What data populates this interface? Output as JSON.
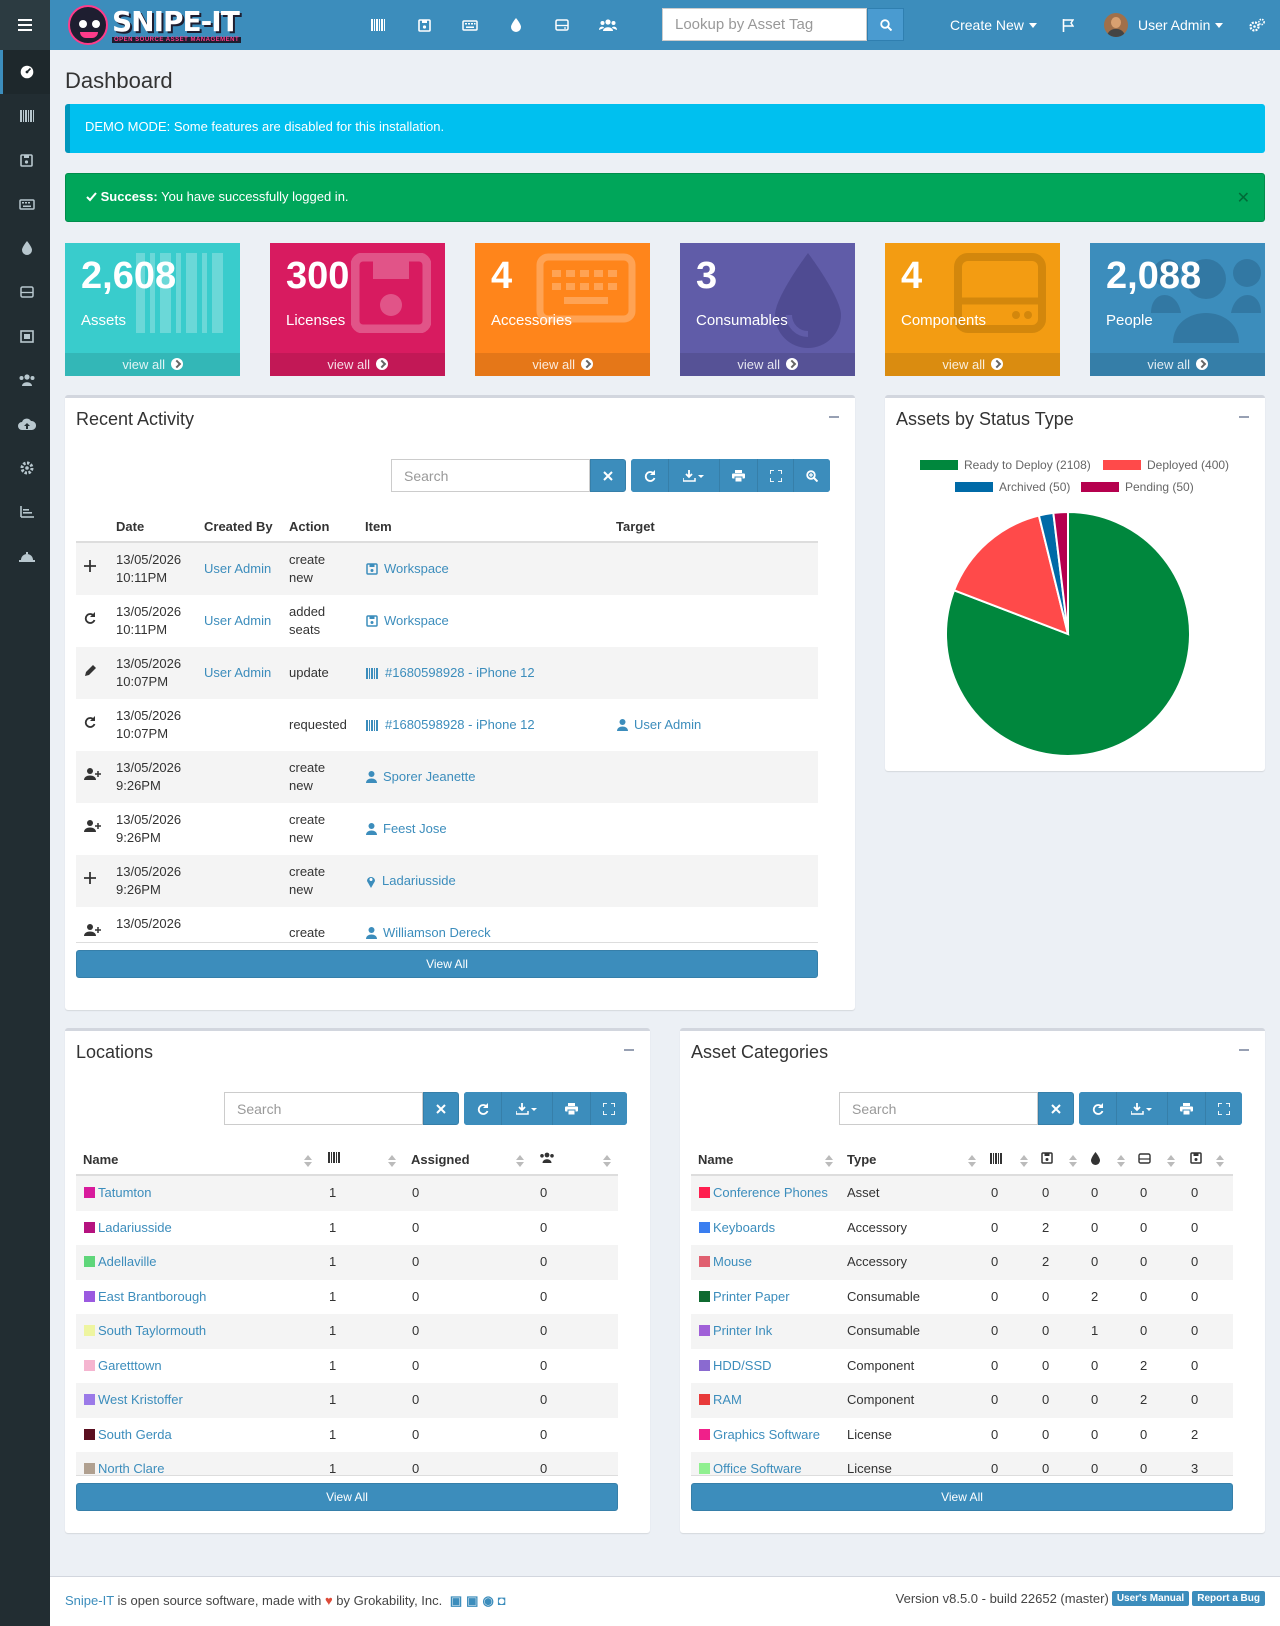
{
  "header": {
    "logo_text": "SNIPE-IT",
    "logo_tagline": "OPEN SOURCE ASSET MANAGEMENT",
    "search_placeholder": "Lookup by Asset Tag",
    "create_new_label": "Create New",
    "user_label": "User Admin",
    "icons": [
      "barcode-icon",
      "license-icon",
      "keyboard-icon",
      "droplet-icon",
      "hdd-icon",
      "users-icon"
    ]
  },
  "page": {
    "title": "Dashboard"
  },
  "alerts": {
    "demo": "DEMO MODE: Some features are disabled for this installation.",
    "success_strong": "Success:",
    "success_text": "You have successfully logged in."
  },
  "stats": [
    {
      "num": "2,608",
      "label": "Assets",
      "foot": "view all",
      "color": "#39cccc"
    },
    {
      "num": "300",
      "label": "Licenses",
      "foot": "view all",
      "color": "#d81b60"
    },
    {
      "num": "4",
      "label": "Accessories",
      "foot": "view all",
      "color": "#ff851b"
    },
    {
      "num": "3",
      "label": "Consumables",
      "foot": "view all",
      "color": "#605ca8"
    },
    {
      "num": "4",
      "label": "Components",
      "foot": "view all",
      "color": "#f39c12"
    },
    {
      "num": "2,088",
      "label": "People",
      "foot": "view all",
      "color": "#3c8dbc"
    }
  ],
  "recent": {
    "title": "Recent Activity",
    "search_placeholder": "Search",
    "columns": [
      "Date",
      "Created By",
      "Action",
      "Item",
      "Target"
    ],
    "rows": [
      {
        "d1": "13/05/2026",
        "d2": "10:11PM",
        "by": "User Admin",
        "a1": "create",
        "a2": "new",
        "item": "Workspace",
        "target": ""
      },
      {
        "d1": "13/05/2026",
        "d2": "10:11PM",
        "by": "User Admin",
        "a1": "added",
        "a2": "seats",
        "item": "Workspace",
        "target": ""
      },
      {
        "d1": "13/05/2026",
        "d2": "10:07PM",
        "by": "User Admin",
        "a1": "update",
        "a2": "",
        "item": "#1680598928 - iPhone 12",
        "target": ""
      },
      {
        "d1": "13/05/2026",
        "d2": "10:07PM",
        "by": "",
        "a1": "requested",
        "a2": "",
        "item": "#1680598928 - iPhone 12",
        "target": "User Admin"
      },
      {
        "d1": "13/05/2026",
        "d2": "9:26PM",
        "by": "",
        "a1": "create",
        "a2": "new",
        "item": "Sporer Jeanette",
        "target": ""
      },
      {
        "d1": "13/05/2026",
        "d2": "9:26PM",
        "by": "",
        "a1": "create",
        "a2": "new",
        "item": "Feest Jose",
        "target": ""
      },
      {
        "d1": "13/05/2026",
        "d2": "9:26PM",
        "by": "",
        "a1": "create",
        "a2": "new",
        "item": "Ladariusside",
        "target": ""
      },
      {
        "d1": "13/05/2026",
        "d2": "",
        "by": "",
        "a1": "create",
        "a2": "",
        "item": "Williamson Dereck",
        "target": ""
      }
    ],
    "view_all": "View All"
  },
  "status_chart": {
    "title": "Assets by Status Type",
    "chart_data": {
      "type": "pie",
      "categories": [
        "Ready to Deploy (2108)",
        "Deployed (400)",
        "Archived (50)",
        "Pending (50)"
      ],
      "values": [
        2108,
        400,
        50,
        50
      ],
      "colors": [
        "#00873d",
        "#ff4a4a",
        "#006aa7",
        "#b5004e"
      ]
    }
  },
  "locations": {
    "title": "Locations",
    "search_placeholder": "Search",
    "columns": [
      "Name",
      "",
      "Assigned",
      ""
    ],
    "rows": [
      {
        "name": "Tatumton",
        "color": "#d81b9c",
        "c1": "1",
        "c2": "0",
        "c3": "0"
      },
      {
        "name": "Ladariusside",
        "color": "#b5127f",
        "c1": "1",
        "c2": "0",
        "c3": "0"
      },
      {
        "name": "Adellaville",
        "color": "#5fd67a",
        "c1": "1",
        "c2": "0",
        "c3": "0"
      },
      {
        "name": "East Brantborough",
        "color": "#9b5ae0",
        "c1": "1",
        "c2": "0",
        "c3": "0"
      },
      {
        "name": "South Taylormouth",
        "color": "#eef5a0",
        "c1": "1",
        "c2": "0",
        "c3": "0"
      },
      {
        "name": "Garetttown",
        "color": "#f5b5d0",
        "c1": "1",
        "c2": "0",
        "c3": "0"
      },
      {
        "name": "West Kristoffer",
        "color": "#9b7ae8",
        "c1": "1",
        "c2": "0",
        "c3": "0"
      },
      {
        "name": "South Gerda",
        "color": "#5a0f20",
        "c1": "1",
        "c2": "0",
        "c3": "0"
      },
      {
        "name": "North Clare",
        "color": "#b0a090",
        "c1": "1",
        "c2": "0",
        "c3": "0"
      }
    ],
    "view_all": "View All"
  },
  "categories": {
    "title": "Asset Categories",
    "search_placeholder": "Search",
    "columns": [
      "Name",
      "Type"
    ],
    "rows": [
      {
        "name": "Conference Phones",
        "color": "#ff1f4f",
        "type": "Asset",
        "v": [
          "0",
          "0",
          "0",
          "0",
          "0"
        ]
      },
      {
        "name": "Keyboards",
        "color": "#3a7ef0",
        "type": "Accessory",
        "v": [
          "0",
          "2",
          "0",
          "0",
          "0"
        ]
      },
      {
        "name": "Mouse",
        "color": "#e06070",
        "type": "Accessory",
        "v": [
          "0",
          "2",
          "0",
          "0",
          "0"
        ]
      },
      {
        "name": "Printer Paper",
        "color": "#0f6a30",
        "type": "Consumable",
        "v": [
          "0",
          "0",
          "2",
          "0",
          "0"
        ]
      },
      {
        "name": "Printer Ink",
        "color": "#a060d8",
        "type": "Consumable",
        "v": [
          "0",
          "0",
          "1",
          "0",
          "0"
        ]
      },
      {
        "name": "HDD/SSD",
        "color": "#8a6ad0",
        "type": "Component",
        "v": [
          "0",
          "0",
          "0",
          "2",
          "0"
        ]
      },
      {
        "name": "RAM",
        "color": "#e83a3a",
        "type": "Component",
        "v": [
          "0",
          "0",
          "0",
          "2",
          "0"
        ]
      },
      {
        "name": "Graphics Software",
        "color": "#f0208a",
        "type": "License",
        "v": [
          "0",
          "0",
          "0",
          "0",
          "2"
        ]
      },
      {
        "name": "Office Software",
        "color": "#90f090",
        "type": "License",
        "v": [
          "0",
          "0",
          "0",
          "0",
          "3"
        ]
      }
    ],
    "view_all": "View All"
  },
  "footer": {
    "brand": "Snipe-IT",
    "text1": "is open source software, made with",
    "text2": "by Grokability, Inc.",
    "version": "Version v8.5.0 - build 22652 (master)",
    "manual": "User's Manual",
    "report": "Report a Bug"
  }
}
